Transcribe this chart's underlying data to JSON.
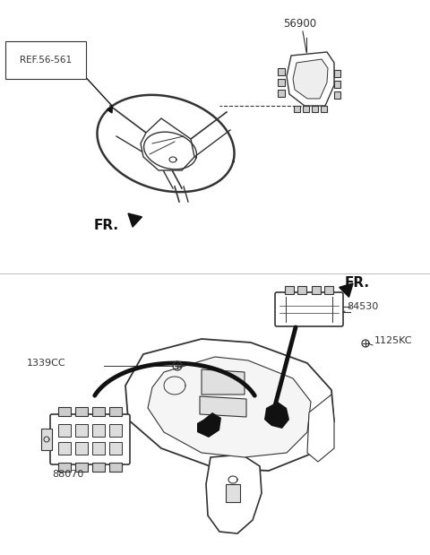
{
  "bg_color": "#ffffff",
  "line_color": "#333333",
  "dark_color": "#111111",
  "fig_width": 4.8,
  "fig_height": 6.19,
  "dpi": 100,
  "labels": {
    "ref_56561": "REF.56-561",
    "part_56900": "56900",
    "fr_upper": "FR.",
    "fr_lower": "FR.",
    "part_84530": "84530",
    "part_1125KC": "1125KC",
    "part_1339CC": "1339CC",
    "part_88070": "88070"
  }
}
